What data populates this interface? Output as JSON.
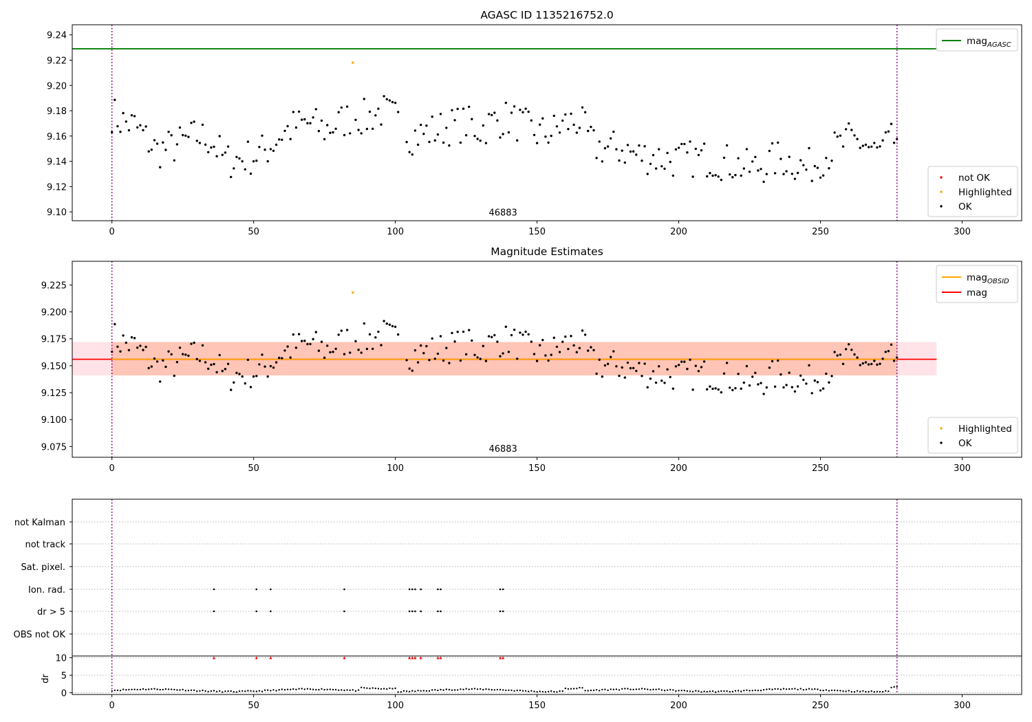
{
  "chart_data": [
    {
      "type": "scatter",
      "title": "AGASC ID 1135216752.0",
      "xlim": [
        -14,
        321
      ],
      "ylim": [
        9.093,
        9.248
      ],
      "xticks": [
        0,
        50,
        100,
        150,
        200,
        250,
        300
      ],
      "yticks": [
        9.1,
        9.12,
        9.14,
        9.16,
        9.18,
        9.2,
        9.22,
        9.24
      ],
      "ytick_decimals": 2,
      "grid": false,
      "vlines": [
        0,
        277
      ],
      "hlines": [
        {
          "name": "mag",
          "subscript": "AGASC",
          "y": 9.229,
          "x": [
            -14,
            291
          ],
          "color": "#008000"
        }
      ],
      "annotation": {
        "text": "46883",
        "x": 138,
        "y": 9.097
      },
      "legend_lines": {
        "placement": "top-right",
        "entries": [
          {
            "name": "mag",
            "subscript": "AGASC",
            "color": "#008000"
          }
        ]
      },
      "legend_points": {
        "placement": "bottom-right",
        "entries": [
          {
            "name": "not OK",
            "color": "#ff0000"
          },
          {
            "name": "Highlighted",
            "color": "#ffa500"
          },
          {
            "name": "OK",
            "color": "#000000"
          }
        ]
      },
      "highlighted": [
        {
          "x": 85,
          "y": 9.218
        }
      ]
    },
    {
      "type": "scatter",
      "title": "Magnitude Estimates",
      "xlim": [
        -14,
        321
      ],
      "ylim": [
        9.065,
        9.247
      ],
      "xticks": [
        0,
        50,
        100,
        150,
        200,
        250,
        300
      ],
      "yticks": [
        9.075,
        9.1,
        9.125,
        9.15,
        9.175,
        9.2,
        9.225
      ],
      "ytick_decimals": 3,
      "grid": false,
      "vlines": [
        0,
        277
      ],
      "hlines": [
        {
          "name": "mag",
          "subscript": "",
          "y": 9.156,
          "x": [
            -14,
            291
          ],
          "color": "#ff0000"
        },
        {
          "name": "mag",
          "subscript": "OBSID",
          "y": 9.156,
          "x": [
            0,
            277
          ],
          "color": "#ffa500"
        }
      ],
      "bands": [
        {
          "y": [
            9.141,
            9.172
          ],
          "x": [
            -14,
            291
          ],
          "color": "#ffc0cb",
          "opacity": 0.45
        },
        {
          "y": [
            9.141,
            9.172
          ],
          "x": [
            0,
            277
          ],
          "color": "#ffa07a",
          "opacity": 0.45
        }
      ],
      "annotation": {
        "text": "46883",
        "x": 138,
        "y": 9.07
      },
      "legend_lines": {
        "placement": "top-right",
        "entries": [
          {
            "name": "mag",
            "subscript": "OBSID",
            "color": "#ffa500"
          },
          {
            "name": "mag",
            "subscript": "",
            "color": "#ff0000"
          }
        ]
      },
      "legend_points": {
        "placement": "bottom-right",
        "entries": [
          {
            "name": "Highlighted",
            "color": "#ffa500"
          },
          {
            "name": "OK",
            "color": "#000000"
          }
        ]
      },
      "highlighted": [
        {
          "x": 85,
          "y": 9.218
        }
      ]
    },
    {
      "type": "scatter",
      "title": "",
      "xlim": [
        -14,
        321
      ],
      "xticks": [
        0,
        50,
        100,
        150,
        200,
        250,
        300
      ],
      "flag_rows": [
        "not Kalman",
        "not track",
        "Sat. pixel.",
        "Ion. rad.",
        "dr > 5",
        "OBS not OK"
      ],
      "flag_points": {
        "Ion. rad.": [
          36,
          51,
          56,
          82,
          105,
          106,
          107,
          109,
          115,
          116,
          137,
          138
        ],
        "dr > 5": [
          36,
          51,
          56,
          82,
          105,
          106,
          107,
          109,
          115,
          116,
          137,
          138
        ]
      },
      "dr_ylim": [
        -0.5,
        10.5
      ],
      "dr_yticks": [
        0,
        5,
        10
      ],
      "dr_ylabel": "dr",
      "dr_clipped": [
        36,
        51,
        56,
        82,
        105,
        106,
        107,
        109,
        115,
        116,
        137,
        138
      ],
      "vlines": [
        0,
        277
      ]
    }
  ],
  "colors": {
    "ok": "#000000",
    "highlighted": "#ffa500",
    "not_ok": "#ff0000",
    "agasc_line": "#008000",
    "vline": "#800080",
    "grid": "#b0b0b0"
  }
}
